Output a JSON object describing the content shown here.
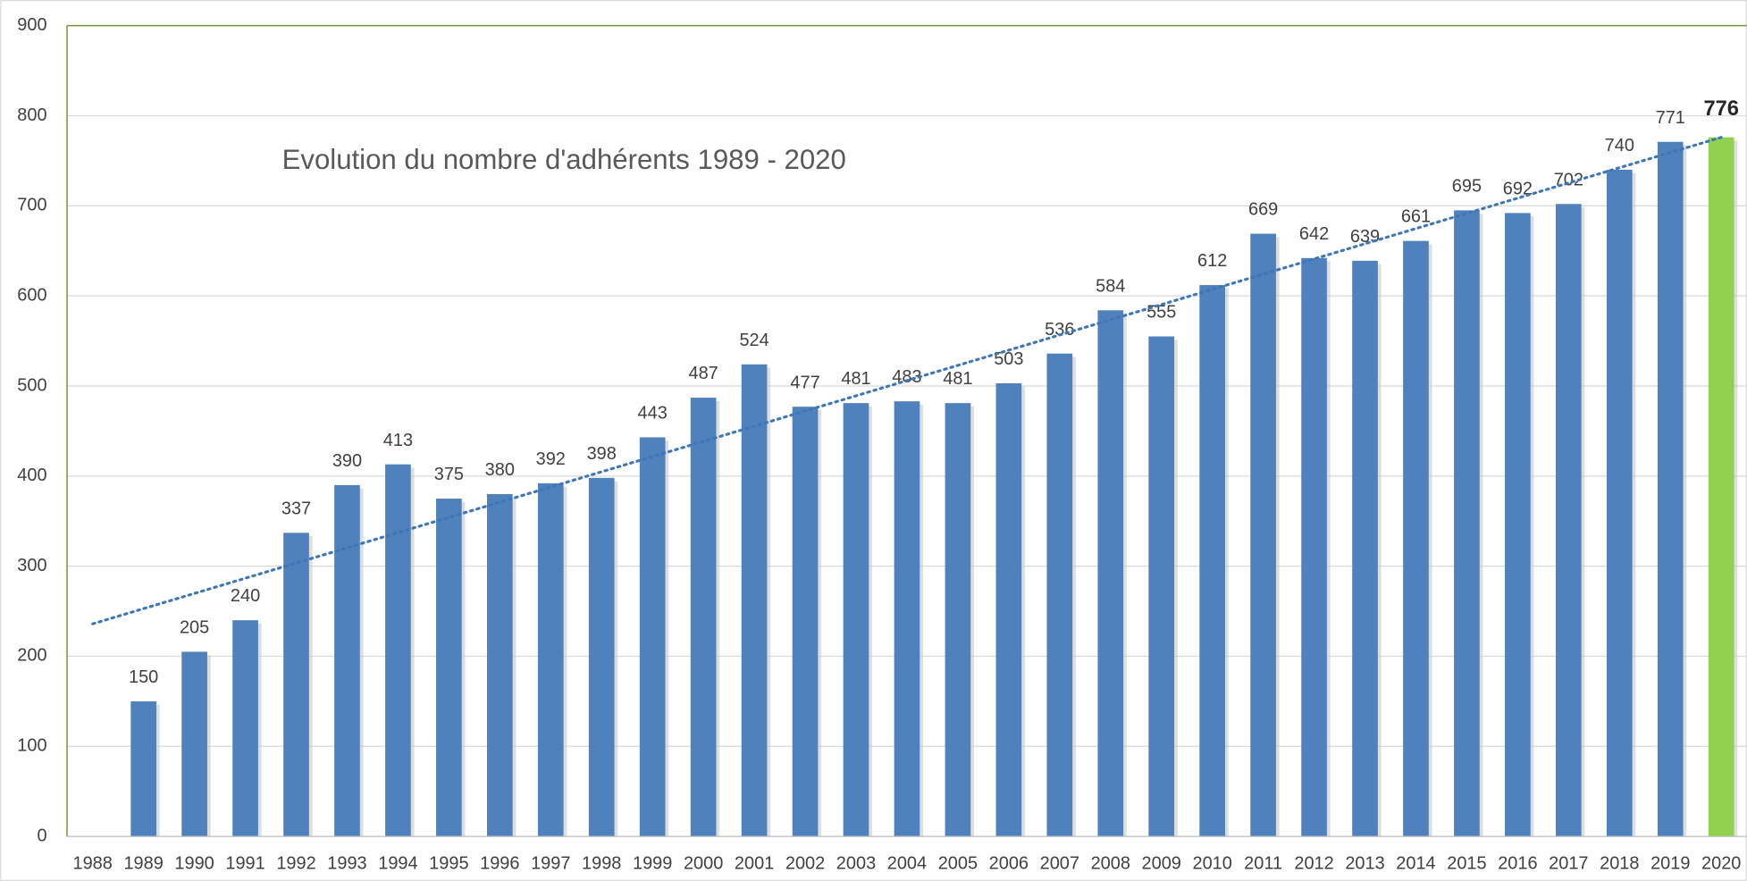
{
  "chart_data": {
    "type": "bar",
    "title": "Evolution du nombre d'adhérents 1989 - 2020",
    "categories": [
      "1988",
      "1989",
      "1990",
      "1991",
      "1992",
      "1993",
      "1994",
      "1995",
      "1996",
      "1997",
      "1998",
      "1999",
      "2000",
      "2001",
      "2002",
      "2003",
      "2004",
      "2005",
      "2006",
      "2007",
      "2008",
      "2009",
      "2010",
      "2011",
      "2012",
      "2013",
      "2014",
      "2015",
      "2016",
      "2017",
      "2018",
      "2019",
      "2020"
    ],
    "values": [
      null,
      150,
      205,
      240,
      337,
      390,
      413,
      375,
      380,
      392,
      398,
      443,
      487,
      524,
      477,
      481,
      483,
      481,
      503,
      536,
      584,
      555,
      612,
      669,
      642,
      639,
      661,
      695,
      692,
      702,
      740,
      771,
      776
    ],
    "colors": [
      null,
      "#4f81bd",
      "#4f81bd",
      "#4f81bd",
      "#4f81bd",
      "#4f81bd",
      "#4f81bd",
      "#4f81bd",
      "#4f81bd",
      "#4f81bd",
      "#4f81bd",
      "#4f81bd",
      "#4f81bd",
      "#4f81bd",
      "#4f81bd",
      "#4f81bd",
      "#4f81bd",
      "#4f81bd",
      "#4f81bd",
      "#4f81bd",
      "#4f81bd",
      "#4f81bd",
      "#4f81bd",
      "#4f81bd",
      "#4f81bd",
      "#4f81bd",
      "#4f81bd",
      "#4f81bd",
      "#4f81bd",
      "#4f81bd",
      "#4f81bd",
      "#4f81bd",
      "#92d050"
    ],
    "trendline": {
      "color": "#3f76b8",
      "values": [
        236,
        776
      ]
    },
    "ylim": [
      0,
      900
    ],
    "yticks": [
      0,
      100,
      200,
      300,
      400,
      500,
      600,
      700,
      800,
      900
    ],
    "grid": true
  }
}
